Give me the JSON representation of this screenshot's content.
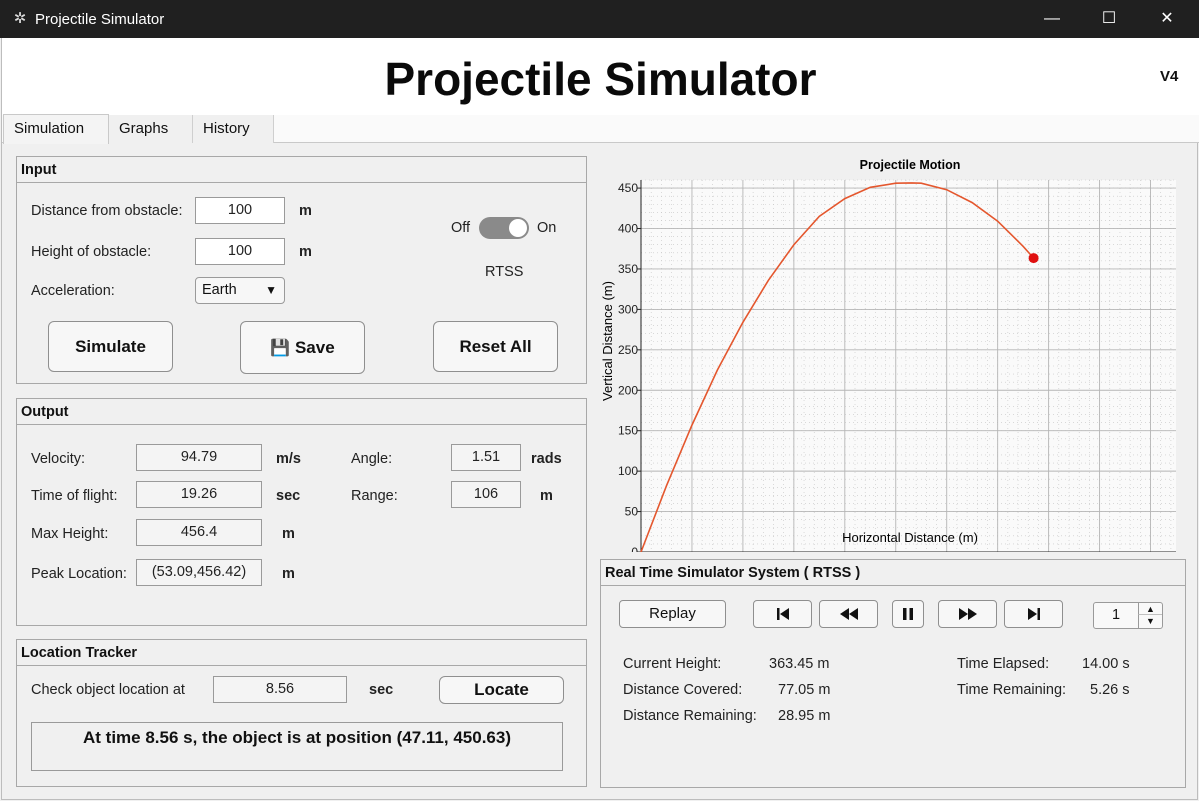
{
  "window": {
    "title": "Projectile Simulator",
    "icon": "projectile-app-icon",
    "controls": {
      "minimize": "—",
      "maximize": "☐",
      "close": "✕"
    }
  },
  "header": {
    "title": "Projectile Simulator",
    "version": "V4"
  },
  "tabs": [
    {
      "label": "Simulation",
      "active": true
    },
    {
      "label": "Graphs",
      "active": false
    },
    {
      "label": "History",
      "active": false
    }
  ],
  "input": {
    "title": "Input",
    "distance_label": "Distance from obstacle:",
    "distance_value": "100",
    "distance_unit": "m",
    "height_label": "Height of obstacle:",
    "height_value": "100",
    "height_unit": "m",
    "accel_label": "Acceleration:",
    "accel_value": "Earth",
    "toggle_off": "Off",
    "toggle_on": "On",
    "toggle_caption": "RTSS",
    "simulate": "Simulate",
    "save": "Save",
    "reset": "Reset All"
  },
  "output": {
    "title": "Output",
    "velocity_label": "Velocity:",
    "velocity_value": "94.79",
    "velocity_unit": "m/s",
    "tof_label": "Time of flight:",
    "tof_value": "19.26",
    "tof_unit": "sec",
    "maxh_label": "Max Height:",
    "maxh_value": "456.4",
    "maxh_unit": "m",
    "peak_label": "Peak Location:",
    "peak_value": "(53.09,456.42)",
    "peak_unit": "m",
    "angle_label": "Angle:",
    "angle_value": "1.51",
    "angle_unit": "rads",
    "range_label": "Range:",
    "range_value": "106",
    "range_unit": "m"
  },
  "tracker": {
    "title": "Location Tracker",
    "check_label": "Check object location at",
    "time_value": "8.56",
    "time_unit": "sec",
    "locate": "Locate",
    "result": "At time 8.56 s, the object is at position (47.11, 450.63)"
  },
  "rtss": {
    "title": "Real Time Simulator System ( RTSS )",
    "replay": "Replay",
    "speed_value": "1",
    "current_height_label": "Current Height:",
    "current_height_value": "363.45 m",
    "distance_covered_label": "Distance Covered:",
    "distance_covered_value": "77.05 m",
    "distance_remaining_label": "Distance Remaining:",
    "distance_remaining_value": "28.95 m",
    "time_elapsed_label": "Time Elapsed:",
    "time_elapsed_value": "14.00 s",
    "time_remaining_label": "Time Remaining:",
    "time_remaining_value": "5.26 s"
  },
  "chart_data": {
    "type": "line",
    "title": "Projectile Motion",
    "xlabel": "Horizontal Distance (m)",
    "ylabel": "Vertical Distance (m)",
    "xlim": [
      0,
      105
    ],
    "ylim": [
      0,
      460
    ],
    "xticks": [
      0,
      10,
      20,
      30,
      40,
      50,
      60,
      70,
      80,
      90,
      100
    ],
    "yticks": [
      0,
      50,
      100,
      150,
      200,
      250,
      300,
      350,
      400,
      450
    ],
    "grid": true,
    "line_color": "#e4572e",
    "marker_color": "#e01010",
    "series": [
      {
        "x": [
          0,
          5,
          10,
          15,
          20,
          25,
          30,
          35,
          40,
          45,
          50,
          53.09,
          55,
          60,
          65,
          70,
          75,
          77.05
        ],
        "y": [
          0,
          82,
          157,
          225,
          284,
          336,
          380,
          415,
          437,
          451,
          456,
          456.4,
          456,
          448,
          432,
          409,
          378,
          363.45
        ]
      }
    ],
    "current_point": {
      "x": 77.05,
      "y": 363.45
    }
  }
}
